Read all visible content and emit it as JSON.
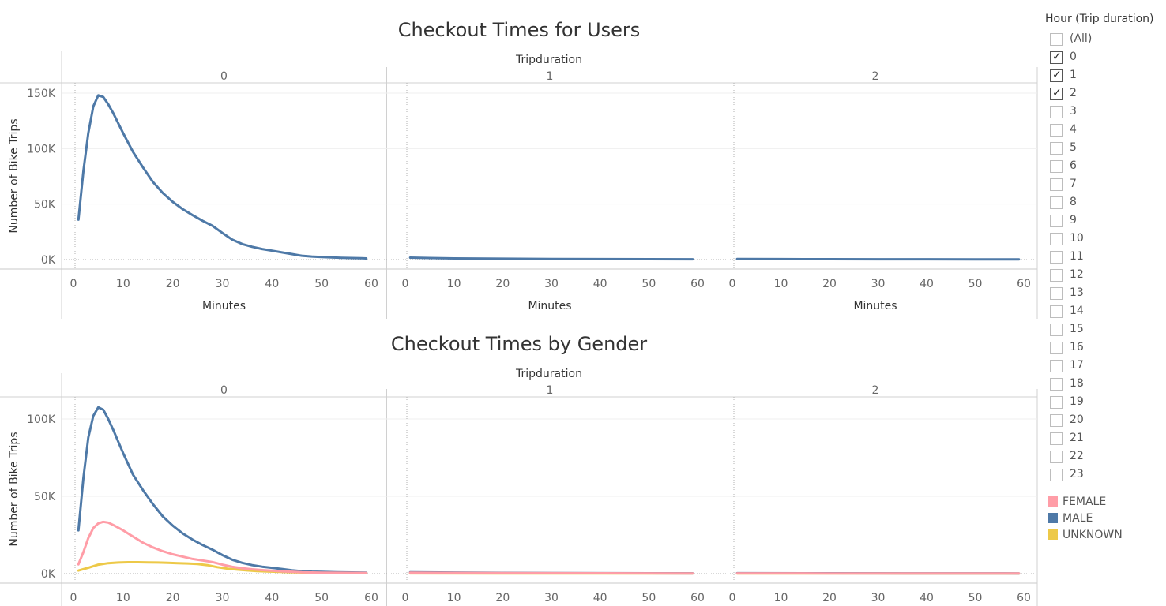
{
  "legend": {
    "filter_title": "Hour (Trip duration)",
    "filter_items": [
      {
        "label": "(All)",
        "checked": false
      },
      {
        "label": "0",
        "checked": true
      },
      {
        "label": "1",
        "checked": true
      },
      {
        "label": "2",
        "checked": true
      },
      {
        "label": "3",
        "checked": false
      },
      {
        "label": "4",
        "checked": false
      },
      {
        "label": "5",
        "checked": false
      },
      {
        "label": "6",
        "checked": false
      },
      {
        "label": "7",
        "checked": false
      },
      {
        "label": "8",
        "checked": false
      },
      {
        "label": "9",
        "checked": false
      },
      {
        "label": "10",
        "checked": false
      },
      {
        "label": "11",
        "checked": false
      },
      {
        "label": "12",
        "checked": false
      },
      {
        "label": "13",
        "checked": false
      },
      {
        "label": "14",
        "checked": false
      },
      {
        "label": "15",
        "checked": false
      },
      {
        "label": "16",
        "checked": false
      },
      {
        "label": "17",
        "checked": false
      },
      {
        "label": "18",
        "checked": false
      },
      {
        "label": "19",
        "checked": false
      },
      {
        "label": "20",
        "checked": false
      },
      {
        "label": "21",
        "checked": false
      },
      {
        "label": "22",
        "checked": false
      },
      {
        "label": "23",
        "checked": false
      }
    ],
    "color_items": [
      {
        "label": "FEMALE",
        "color": "#ff9da7"
      },
      {
        "label": "MALE",
        "color": "#4e79a7"
      },
      {
        "label": "UNKNOWN",
        "color": "#edc948"
      }
    ]
  },
  "chart_data": [
    {
      "type": "line",
      "title": "Checkout Times for Users",
      "facet_label": "Tripduration",
      "facets": [
        "0",
        "1",
        "2"
      ],
      "xlabel": "Minutes",
      "ylabel": "Number of Bike Trips",
      "xlim": [
        0,
        60
      ],
      "xticks": [
        0,
        10,
        20,
        30,
        40,
        50,
        60
      ],
      "ylim": [
        0,
        150000
      ],
      "yticks": [
        {
          "value": 0,
          "label": "0K"
        },
        {
          "value": 50000,
          "label": "50K"
        },
        {
          "value": 100000,
          "label": "100K"
        },
        {
          "value": 150000,
          "label": "150K"
        }
      ],
      "grid": true,
      "series": [
        {
          "color": "#4e79a7",
          "facet_points": [
            [
              [
                1,
                36000
              ],
              [
                2,
                80000
              ],
              [
                3,
                114000
              ],
              [
                4,
                138000
              ],
              [
                5,
                148000
              ],
              [
                6,
                146500
              ],
              [
                7,
                140000
              ],
              [
                8,
                132000
              ],
              [
                10,
                114000
              ],
              [
                12,
                97000
              ],
              [
                14,
                83000
              ],
              [
                16,
                70000
              ],
              [
                18,
                60000
              ],
              [
                20,
                52000
              ],
              [
                22,
                45500
              ],
              [
                24,
                40000
              ],
              [
                26,
                35000
              ],
              [
                28,
                30500
              ],
              [
                30,
                24000
              ],
              [
                32,
                18000
              ],
              [
                34,
                14000
              ],
              [
                36,
                11500
              ],
              [
                38,
                9500
              ],
              [
                40,
                8000
              ],
              [
                42,
                6500
              ],
              [
                44,
                5000
              ],
              [
                46,
                3500
              ],
              [
                48,
                2800
              ],
              [
                50,
                2300
              ],
              [
                52,
                1900
              ],
              [
                54,
                1600
              ],
              [
                56,
                1400
              ],
              [
                58,
                1200
              ],
              [
                59,
                1100
              ]
            ],
            [
              [
                1,
                1800
              ],
              [
                5,
                1400
              ],
              [
                10,
                1100
              ],
              [
                20,
                800
              ],
              [
                30,
                600
              ],
              [
                40,
                450
              ],
              [
                50,
                350
              ],
              [
                59,
                300
              ]
            ],
            [
              [
                1,
                600
              ],
              [
                10,
                450
              ],
              [
                20,
                350
              ],
              [
                30,
                300
              ],
              [
                40,
                250
              ],
              [
                50,
                200
              ],
              [
                59,
                200
              ]
            ]
          ]
        }
      ]
    },
    {
      "type": "line",
      "title": "Checkout Times by Gender",
      "facet_label": "Tripduration",
      "facets": [
        "0",
        "1",
        "2"
      ],
      "xlabel": "Minutes",
      "ylabel": "Number of Bike Trips",
      "xlim": [
        0,
        60
      ],
      "xticks": [
        0,
        10,
        20,
        30,
        40,
        50,
        60
      ],
      "ylim": [
        0,
        100000
      ],
      "yticks": [
        {
          "value": 0,
          "label": "0K"
        },
        {
          "value": 50000,
          "label": "50K"
        },
        {
          "value": 100000,
          "label": "100K"
        }
      ],
      "grid": true,
      "series": [
        {
          "name": "UNKNOWN",
          "color": "#edc948",
          "facet_points": [
            [
              [
                1,
                2000
              ],
              [
                3,
                3800
              ],
              [
                5,
                5800
              ],
              [
                7,
                6800
              ],
              [
                9,
                7200
              ],
              [
                11,
                7400
              ],
              [
                13,
                7400
              ],
              [
                15,
                7300
              ],
              [
                17,
                7200
              ],
              [
                19,
                7000
              ],
              [
                21,
                6800
              ],
              [
                23,
                6600
              ],
              [
                25,
                6200
              ],
              [
                27,
                5500
              ],
              [
                29,
                4200
              ],
              [
                31,
                3200
              ],
              [
                33,
                2600
              ],
              [
                35,
                2100
              ],
              [
                37,
                1700
              ],
              [
                39,
                1400
              ],
              [
                41,
                1200
              ],
              [
                43,
                1000
              ],
              [
                45,
                800
              ],
              [
                47,
                650
              ],
              [
                49,
                550
              ],
              [
                52,
                450
              ],
              [
                55,
                400
              ],
              [
                59,
                350
              ]
            ],
            [
              [
                1,
                200
              ],
              [
                20,
                150
              ],
              [
                40,
                100
              ],
              [
                59,
                100
              ]
            ],
            [
              [
                1,
                100
              ],
              [
                30,
                80
              ],
              [
                59,
                60
              ]
            ]
          ]
        },
        {
          "name": "MALE",
          "color": "#4e79a7",
          "facet_points": [
            [
              [
                1,
                28000
              ],
              [
                2,
                62000
              ],
              [
                3,
                88000
              ],
              [
                4,
                102000
              ],
              [
                5,
                107500
              ],
              [
                6,
                106000
              ],
              [
                7,
                100000
              ],
              [
                8,
                93000
              ],
              [
                10,
                78000
              ],
              [
                12,
                64000
              ],
              [
                14,
                54000
              ],
              [
                16,
                45000
              ],
              [
                18,
                37000
              ],
              [
                20,
                31000
              ],
              [
                22,
                26000
              ],
              [
                24,
                22000
              ],
              [
                26,
                18500
              ],
              [
                28,
                15500
              ],
              [
                30,
                12000
              ],
              [
                32,
                9000
              ],
              [
                34,
                7000
              ],
              [
                36,
                5500
              ],
              [
                38,
                4500
              ],
              [
                40,
                3800
              ],
              [
                42,
                3000
              ],
              [
                44,
                2200
              ],
              [
                46,
                1600
              ],
              [
                48,
                1300
              ],
              [
                50,
                1100
              ],
              [
                53,
                900
              ],
              [
                56,
                750
              ],
              [
                59,
                650
              ]
            ],
            [
              [
                1,
                900
              ],
              [
                10,
                700
              ],
              [
                20,
                500
              ],
              [
                30,
                400
              ],
              [
                40,
                300
              ],
              [
                50,
                250
              ],
              [
                59,
                200
              ]
            ],
            [
              [
                1,
                300
              ],
              [
                20,
                250
              ],
              [
                40,
                200
              ],
              [
                59,
                150
              ]
            ]
          ]
        },
        {
          "name": "FEMALE",
          "color": "#ff9da7",
          "facet_points": [
            [
              [
                1,
                6000
              ],
              [
                2,
                14000
              ],
              [
                3,
                23000
              ],
              [
                4,
                29500
              ],
              [
                5,
                32500
              ],
              [
                6,
                33500
              ],
              [
                7,
                33000
              ],
              [
                8,
                31500
              ],
              [
                10,
                28000
              ],
              [
                12,
                24000
              ],
              [
                14,
                20000
              ],
              [
                16,
                17000
              ],
              [
                18,
                14500
              ],
              [
                20,
                12500
              ],
              [
                22,
                11000
              ],
              [
                24,
                9500
              ],
              [
                26,
                8500
              ],
              [
                28,
                7500
              ],
              [
                30,
                5800
              ],
              [
                32,
                4400
              ],
              [
                34,
                3500
              ],
              [
                36,
                2800
              ],
              [
                38,
                2300
              ],
              [
                40,
                1900
              ],
              [
                42,
                1500
              ],
              [
                44,
                1200
              ],
              [
                46,
                900
              ],
              [
                48,
                750
              ],
              [
                50,
                650
              ],
              [
                54,
                550
              ],
              [
                59,
                450
              ]
            ],
            [
              [
                1,
                600
              ],
              [
                10,
                500
              ],
              [
                20,
                400
              ],
              [
                30,
                300
              ],
              [
                40,
                250
              ],
              [
                50,
                200
              ],
              [
                59,
                150
              ]
            ],
            [
              [
                1,
                200
              ],
              [
                20,
                150
              ],
              [
                40,
                120
              ],
              [
                59,
                100
              ]
            ]
          ]
        }
      ]
    }
  ]
}
